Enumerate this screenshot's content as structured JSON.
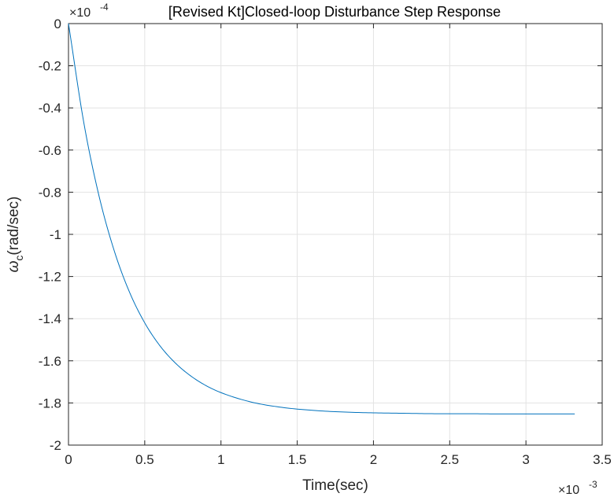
{
  "chart_data": {
    "type": "line",
    "title": "[Revised Kt]Closed-loop Disturbance Step Response",
    "xlabel": "Time(sec)",
    "ylabel_symbol": "ω",
    "ylabel_subscript": "c",
    "ylabel_rest": "(rad/sec)",
    "x_exponent": {
      "base": "×10",
      "power": "-3"
    },
    "y_exponent": {
      "base": "×10",
      "power": "-4"
    },
    "xlim": [
      0,
      0.0035
    ],
    "ylim": [
      -0.0002,
      0
    ],
    "xticks": [
      0,
      0.0005,
      0.001,
      0.0015,
      0.002,
      0.0025,
      0.003,
      0.0035
    ],
    "xtick_labels": [
      "0",
      "0.5",
      "1",
      "1.5",
      "2",
      "2.5",
      "3",
      "3.5"
    ],
    "yticks": [
      0,
      -2e-05,
      -4e-05,
      -6e-05,
      -8e-05,
      -0.0001,
      -0.00012,
      -0.00014,
      -0.00016,
      -0.00018,
      -0.0002
    ],
    "ytick_labels": [
      "0",
      "-0.2",
      "-0.4",
      "-0.6",
      "-0.8",
      "-1",
      "-1.2",
      "-1.4",
      "-1.6",
      "-1.8",
      "-2"
    ],
    "grid": true,
    "series": [
      {
        "color": "#0072BD",
        "x": [
          0,
          0.0001,
          0.0002,
          0.0003,
          0.0004,
          0.0005,
          0.0006,
          0.0007,
          0.0008,
          0.0009,
          0.001,
          0.0012,
          0.0014,
          0.0016,
          0.0018,
          0.002,
          0.0022,
          0.0024,
          0.0026,
          0.0028,
          0.003,
          0.0032,
          0.00332
        ],
        "y": [
          0,
          -4.68e-05,
          -8.17e-05,
          -0.0001078,
          -0.0001274,
          -0.000142,
          -0.0001529,
          -0.000161,
          -0.0001671,
          -0.0001717,
          -0.0001751,
          -0.0001796,
          -0.0001821,
          -0.0001835,
          -0.0001843,
          -0.0001847,
          -0.0001849,
          -0.0001851,
          -0.0001851,
          -0.0001852,
          -0.0001852,
          -0.0001852,
          -0.0001852
        ]
      }
    ]
  }
}
